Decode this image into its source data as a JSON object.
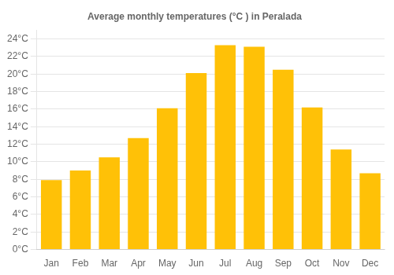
{
  "chart_data": {
    "type": "bar",
    "title": "Average monthly temperatures (°C ) in Peralada",
    "categories": [
      "Jan",
      "Feb",
      "Mar",
      "Apr",
      "May",
      "Jun",
      "Jul",
      "Aug",
      "Sep",
      "Oct",
      "Nov",
      "Dec"
    ],
    "values": [
      7.9,
      9.0,
      10.5,
      12.7,
      16.1,
      20.1,
      23.3,
      23.1,
      20.5,
      16.2,
      11.4,
      8.7
    ],
    "color": "#FFC107",
    "ylim": [
      0,
      25
    ],
    "yticks": [
      {
        "value": 0,
        "label": "0°C"
      },
      {
        "value": 2,
        "label": "2°C"
      },
      {
        "value": 4,
        "label": "4°C"
      },
      {
        "value": 6,
        "label": "6°C"
      },
      {
        "value": 8,
        "label": "8°C"
      },
      {
        "value": 10,
        "label": "10°C"
      },
      {
        "value": 12,
        "label": "12°C"
      },
      {
        "value": 14,
        "label": "14°C"
      },
      {
        "value": 16,
        "label": "16°C"
      },
      {
        "value": 18,
        "label": "18°C"
      },
      {
        "value": 20,
        "label": "20°C"
      },
      {
        "value": 22,
        "label": "22°C"
      },
      {
        "value": 24,
        "label": "24°C"
      }
    ],
    "grid": true
  }
}
